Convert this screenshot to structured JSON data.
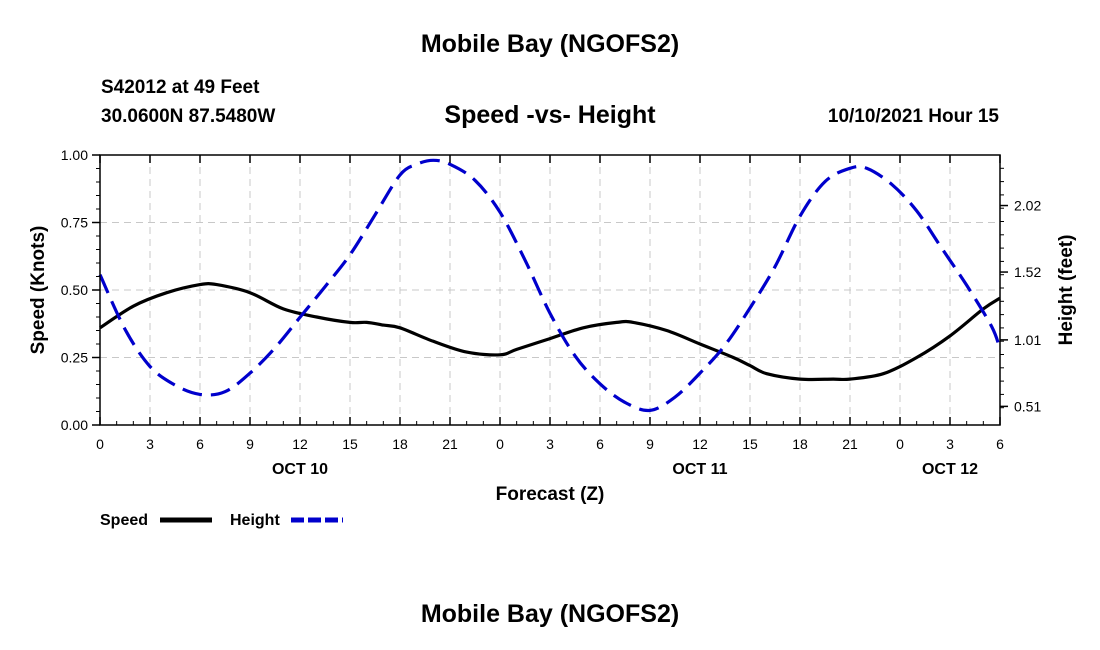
{
  "header": {
    "title": "Mobile Bay (NGOFS2)",
    "station": "S42012 at 49 Feet",
    "coords": "30.0600N  87.5480W",
    "subtitle": "Speed -vs- Height",
    "datetime": "10/10/2021 Hour 15"
  },
  "footer": {
    "title": "Mobile Bay (NGOFS2)"
  },
  "chart_data": {
    "type": "line",
    "title": "Speed -vs- Height",
    "xlabel": "Forecast (Z)",
    "ylabel": "Speed (Knots)",
    "y2label": "Height (feet)",
    "x_hours_range": [
      0,
      54
    ],
    "x_ticks": [
      {
        "h": 0,
        "label": "0"
      },
      {
        "h": 3,
        "label": "3"
      },
      {
        "h": 6,
        "label": "6"
      },
      {
        "h": 9,
        "label": "9"
      },
      {
        "h": 12,
        "label": "12"
      },
      {
        "h": 15,
        "label": "15"
      },
      {
        "h": 18,
        "label": "18"
      },
      {
        "h": 21,
        "label": "21"
      },
      {
        "h": 24,
        "label": "0"
      },
      {
        "h": 27,
        "label": "3"
      },
      {
        "h": 30,
        "label": "6"
      },
      {
        "h": 33,
        "label": "9"
      },
      {
        "h": 36,
        "label": "12"
      },
      {
        "h": 39,
        "label": "15"
      },
      {
        "h": 42,
        "label": "18"
      },
      {
        "h": 45,
        "label": "21"
      },
      {
        "h": 48,
        "label": "0"
      },
      {
        "h": 51,
        "label": "3"
      },
      {
        "h": 54,
        "label": "6"
      }
    ],
    "date_labels": [
      {
        "h": 12,
        "label": "OCT 10"
      },
      {
        "h": 36,
        "label": "OCT 11"
      },
      {
        "h": 51,
        "label": "OCT 12"
      }
    ],
    "ylim": [
      0,
      1.0
    ],
    "y_ticks": [
      "0.00",
      "0.25",
      "0.50",
      "0.75",
      "1.00"
    ],
    "y2lim": [
      0.37,
      2.4
    ],
    "y2_ticks": [
      "0.51",
      "1.01",
      "1.52",
      "2.02"
    ],
    "series": [
      {
        "name": "Speed",
        "axis": "left",
        "color": "#000000",
        "style": "solid",
        "x": [
          0,
          2,
          4,
          6,
          7,
          9,
          11,
          13,
          15,
          16,
          17,
          18,
          20,
          22,
          24,
          25,
          27,
          29,
          31,
          32,
          34,
          36,
          38,
          39,
          40,
          42,
          44,
          45,
          47,
          49,
          51,
          53,
          54
        ],
        "values": [
          0.36,
          0.44,
          0.49,
          0.52,
          0.52,
          0.49,
          0.43,
          0.4,
          0.38,
          0.38,
          0.37,
          0.36,
          0.31,
          0.27,
          0.26,
          0.28,
          0.32,
          0.36,
          0.38,
          0.38,
          0.35,
          0.3,
          0.25,
          0.22,
          0.19,
          0.17,
          0.17,
          0.17,
          0.19,
          0.25,
          0.33,
          0.43,
          0.47
        ]
      },
      {
        "name": "Height",
        "axis": "right",
        "color": "#0000cc",
        "style": "dashed",
        "x": [
          0,
          1.5,
          3,
          4.5,
          6,
          7.5,
          9,
          10.5,
          12,
          13.5,
          15,
          16.5,
          18,
          19,
          20,
          21,
          22.5,
          24,
          25.5,
          27,
          28.5,
          30,
          31.5,
          33,
          34.5,
          36,
          37.5,
          39,
          40.5,
          42,
          43.5,
          45,
          46,
          47.5,
          49,
          50.5,
          52,
          53.5,
          54
        ],
        "values": [
          1.5,
          1.09,
          0.81,
          0.67,
          0.6,
          0.62,
          0.76,
          0.95,
          1.18,
          1.41,
          1.65,
          1.95,
          2.25,
          2.33,
          2.36,
          2.33,
          2.21,
          1.97,
          1.61,
          1.21,
          0.89,
          0.68,
          0.54,
          0.48,
          0.58,
          0.76,
          0.97,
          1.25,
          1.56,
          1.94,
          2.2,
          2.3,
          2.3,
          2.18,
          1.98,
          1.7,
          1.42,
          1.11,
          0.94
        ]
      }
    ],
    "legend": [
      {
        "label": "Speed",
        "color": "#000000",
        "style": "solid"
      },
      {
        "label": "Height",
        "color": "#0000cc",
        "style": "dashed"
      }
    ],
    "grid": true
  }
}
